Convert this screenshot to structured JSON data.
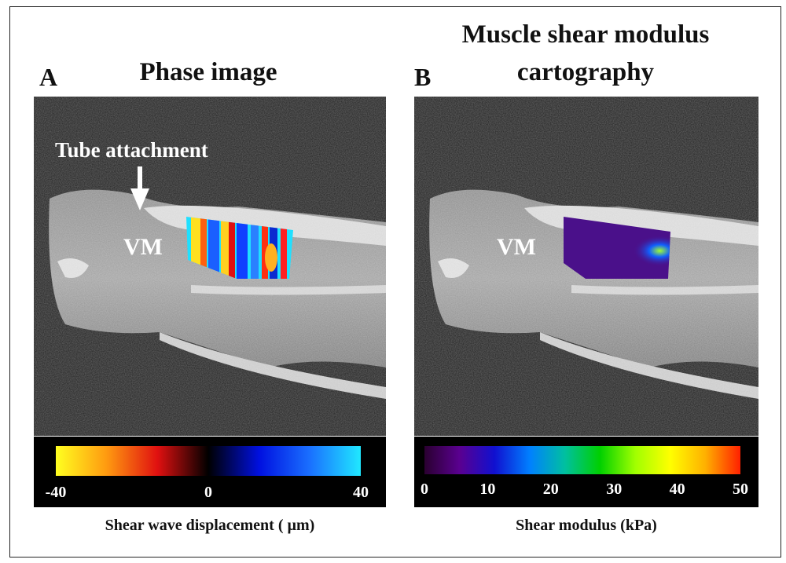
{
  "panel_a": {
    "letter": "A",
    "title": "Phase image",
    "annotation": "Tube attachment",
    "region_label": "VM",
    "colorbar": {
      "ticks": [
        "-40",
        "0",
        "40"
      ],
      "colors": [
        "#ffff20",
        "#ff9a10",
        "#e01010",
        "#000000",
        "#0010e0",
        "#1a70ff",
        "#20e8ff"
      ]
    },
    "caption": "Shear wave displacement ( µm)"
  },
  "panel_b": {
    "letter": "B",
    "title_line1": "Muscle shear modulus",
    "title_line2": "cartography",
    "region_label": "VM",
    "colorbar": {
      "ticks": [
        "0",
        "10",
        "20",
        "30",
        "40",
        "50"
      ],
      "colors": [
        "#2a0030",
        "#5a0090",
        "#1010d0",
        "#0080ff",
        "#00c0a0",
        "#00d000",
        "#a0ff00",
        "#ffff00",
        "#ffb000",
        "#ff2000"
      ]
    },
    "caption": "Shear modulus (kPa)"
  }
}
